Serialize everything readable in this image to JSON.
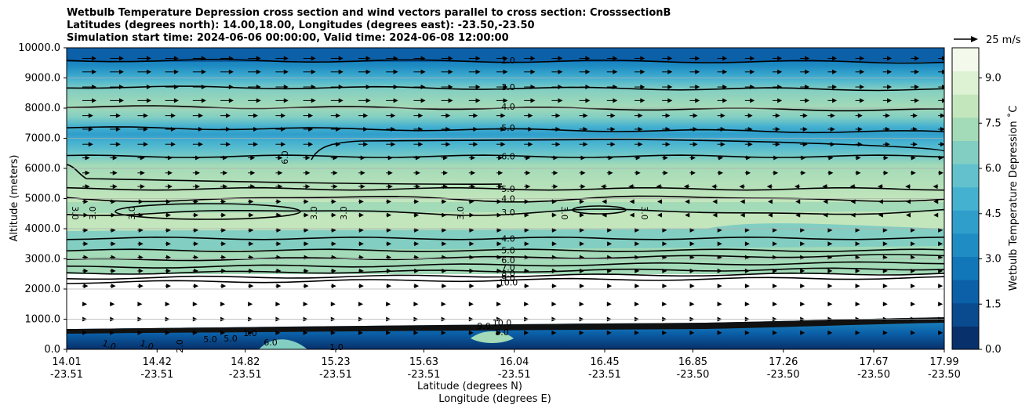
{
  "chart_data": {
    "type": "heatmap",
    "title_lines": [
      "Wetbulb Temperature Depression cross section and wind vectors parallel to cross section: CrosssectionB",
      "Latitudes (degrees north): 14.00,18.00, Longitudes (degrees east): -23.50,-23.50",
      "Simulation start time: 2024-06-06 00:00:00, Valid time: 2024-06-08 12:00:00"
    ],
    "ylabel": "Altitude (meters)",
    "xlabel_lat": "Latitude (degrees N)",
    "xlabel_lon": "Longitude (degrees E)",
    "ylim": [
      0,
      10000
    ],
    "xlim": [
      14.01,
      17.99
    ],
    "y_ticks": [
      "0.0",
      "1000.0",
      "2000.0",
      "3000.0",
      "4000.0",
      "5000.0",
      "6000.0",
      "7000.0",
      "8000.0",
      "9000.0",
      "10000.0"
    ],
    "y_tick_values": [
      0,
      1000,
      2000,
      3000,
      4000,
      5000,
      6000,
      7000,
      8000,
      9000,
      10000
    ],
    "x_ticks_lat": [
      "14.01",
      "14.42",
      "14.82",
      "15.23",
      "15.63",
      "16.04",
      "16.45",
      "16.85",
      "17.26",
      "17.67",
      "17.99"
    ],
    "x_ticks_lon": [
      "-23.51",
      "-23.51",
      "-23.51",
      "-23.51",
      "-23.51",
      "-23.51",
      "-23.51",
      "-23.50",
      "-23.50",
      "-23.50",
      "-23.50"
    ],
    "x_tick_values": [
      14.01,
      14.42,
      14.82,
      15.23,
      15.63,
      16.04,
      16.45,
      16.85,
      17.26,
      17.67,
      17.99
    ],
    "colorbar": {
      "label": "Wetbulb Temperature Depression ˚C",
      "range": [
        0,
        10
      ],
      "ticks": [
        "0.0",
        "1.5",
        "3.0",
        "4.5",
        "6.0",
        "7.5",
        "9.0"
      ],
      "tick_values": [
        0,
        1.5,
        3.0,
        4.5,
        6.0,
        7.5,
        9.0
      ],
      "colormap": [
        "#08306b",
        "#0a4a8f",
        "#0b60a8",
        "#1177b8",
        "#1f8cc3",
        "#2f9ecb",
        "#45b1d0",
        "#62c1cc",
        "#82cec2",
        "#a3dab7",
        "#c4e6bc",
        "#ddf1d3",
        "#f3faeb"
      ]
    },
    "contour_levels": [
      {
        "label": "2.0",
        "height": 9580,
        "value": 2.0
      },
      {
        "label": "3.0",
        "height": 8700,
        "value": 3.0
      },
      {
        "label": "4.0",
        "height": 8050,
        "value": 4.0
      },
      {
        "label": "5.0",
        "height": 7350,
        "value": 5.0
      },
      {
        "label": "6.0",
        "height": 6400,
        "value": 6.0
      },
      {
        "label": "5.0",
        "height": 5320,
        "value": 5.0
      },
      {
        "label": "4.0",
        "height": 5000,
        "value": 4.0
      },
      {
        "label": "3.0",
        "height": 4550,
        "value": 3.0
      },
      {
        "label": "4.0",
        "height": 3680,
        "value": 4.0
      },
      {
        "label": "5.0",
        "height": 3280,
        "value": 5.0
      },
      {
        "label": "6.0",
        "height": 2960,
        "value": 6.0
      },
      {
        "label": "7.0",
        "height": 2720,
        "value": 7.0
      },
      {
        "label": "8.0",
        "height": 2520,
        "value": 8.0
      },
      {
        "label": "9.0",
        "height": 2360,
        "value": 9.0
      },
      {
        "label": "10.0",
        "height": 2220,
        "value": 10.0
      }
    ],
    "extra_contour_labels": [
      "3.0",
      "3.0",
      "3.0",
      "3.0",
      "3.0",
      "3.0",
      "3.0",
      "3.0",
      "6.0",
      "1.0",
      "1.0",
      "1.0",
      "2.0",
      "5.0",
      "5.0",
      "6.0",
      "1.0",
      "10.0",
      "9.0",
      "8.0"
    ],
    "quiver_key_label": "25 m/s",
    "quiver_key_speed": 25
  }
}
